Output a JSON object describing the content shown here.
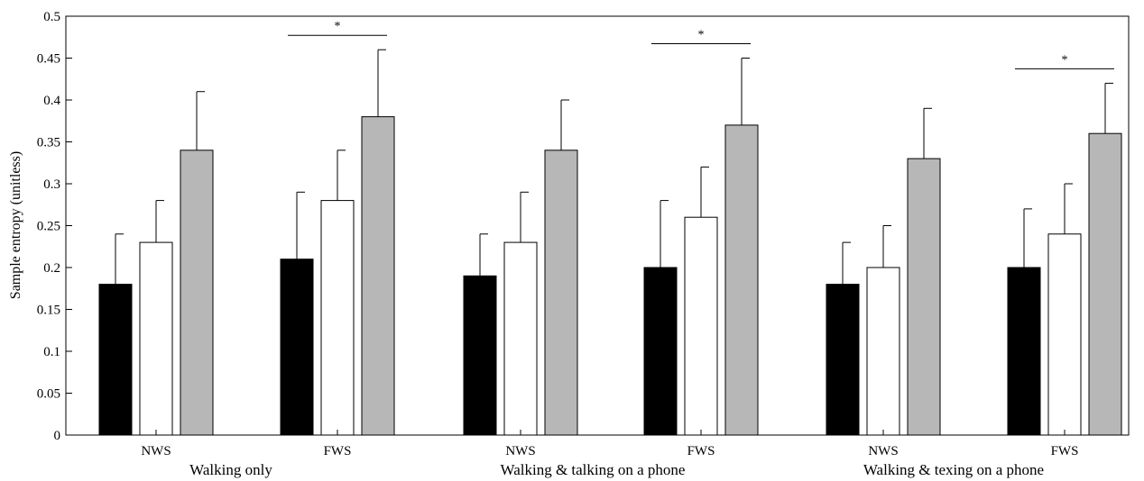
{
  "chart_data": {
    "type": "bar",
    "ylabel": "Sample entropy (unitless)",
    "ylim": [
      0,
      0.5
    ],
    "yticks": [
      0,
      0.05,
      0.1,
      0.15,
      0.2,
      0.25,
      0.3,
      0.35,
      0.4,
      0.45,
      0.5
    ],
    "ytick_labels": [
      "0",
      "0.05",
      "0.1",
      "0.15",
      "0.2",
      "0.25",
      "0.3",
      "0.35",
      "0.4",
      "0.45",
      "0.5"
    ],
    "groups": [
      {
        "condition": "Walking only",
        "speeds": [
          {
            "label": "NWS",
            "values": [
              0.18,
              0.23,
              0.34
            ],
            "errors": [
              0.06,
              0.05,
              0.07
            ],
            "significance": ""
          },
          {
            "label": "FWS",
            "values": [
              0.21,
              0.28,
              0.38
            ],
            "errors": [
              0.08,
              0.06,
              0.08
            ],
            "significance": "*"
          }
        ]
      },
      {
        "condition": "Walking & talking on a phone",
        "speeds": [
          {
            "label": "NWS",
            "values": [
              0.19,
              0.23,
              0.34
            ],
            "errors": [
              0.05,
              0.06,
              0.06
            ],
            "significance": ""
          },
          {
            "label": "FWS",
            "values": [
              0.2,
              0.26,
              0.37
            ],
            "errors": [
              0.08,
              0.06,
              0.08
            ],
            "significance": "*"
          }
        ]
      },
      {
        "condition": "Walking & texing on a phone",
        "speeds": [
          {
            "label": "NWS",
            "values": [
              0.18,
              0.2,
              0.33
            ],
            "errors": [
              0.05,
              0.05,
              0.06
            ],
            "significance": ""
          },
          {
            "label": "FWS",
            "values": [
              0.2,
              0.24,
              0.36
            ],
            "errors": [
              0.07,
              0.06,
              0.06
            ],
            "significance": "*"
          }
        ]
      }
    ],
    "series_colors": [
      "#000000",
      "#ffffff",
      "#b7b7b7"
    ],
    "grid": false,
    "legend": "none"
  }
}
